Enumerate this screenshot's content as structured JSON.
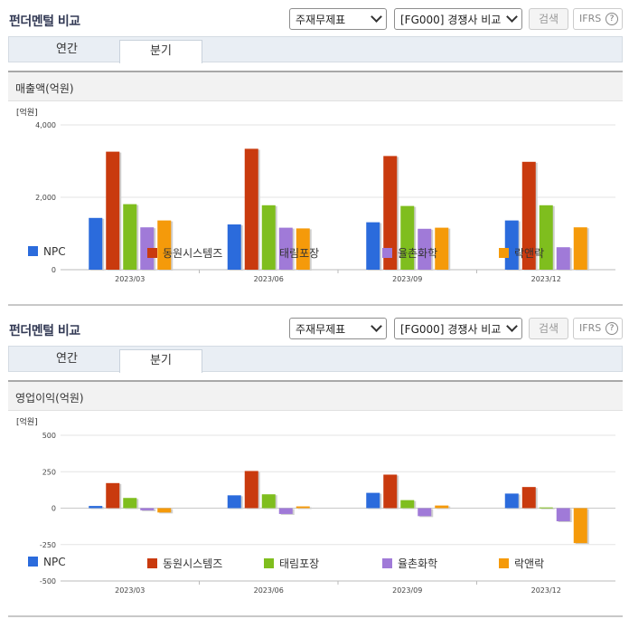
{
  "sections": [
    {
      "title": "펀더멘털 비교",
      "select1": "주재무제표",
      "select2": "[FG000] 경쟁사 비교",
      "search_label": "검색",
      "ifrs_label": "IFRS",
      "help_glyph": "?",
      "tabs": [
        "연간",
        "분기"
      ],
      "active_tab": 1,
      "panel_title": "매출액(억원)"
    },
    {
      "title": "펀더멘털 비교",
      "select1": "주재무제표",
      "select2": "[FG000] 경쟁사 비교",
      "search_label": "검색",
      "ifrs_label": "IFRS",
      "help_glyph": "?",
      "tabs": [
        "연간",
        "분기"
      ],
      "active_tab": 1,
      "panel_title": "영업이익(억원)"
    }
  ],
  "colors": {
    "NPC": "#2b6bdc",
    "동원시스템즈": "#c93a0e",
    "태림포장": "#7fbe1e",
    "율촌화학": "#a07ad8",
    "락앤락": "#f59a0a"
  },
  "chart_data": [
    {
      "type": "bar",
      "title": "매출액(억원)",
      "unit": "[억원]",
      "categories": [
        "2023/03",
        "2023/06",
        "2023/09",
        "2023/12"
      ],
      "ylim": [
        0,
        4000
      ],
      "yticks": [
        0,
        2000,
        4000
      ],
      "ytick_labels": [
        "0",
        "2,000",
        "4,000"
      ],
      "grid": true,
      "legend": "bottom",
      "series": [
        {
          "name": "NPC",
          "values": [
            1430,
            1250,
            1310,
            1360
          ]
        },
        {
          "name": "동원시스템즈",
          "values": [
            3260,
            3340,
            3140,
            2980
          ]
        },
        {
          "name": "태림포장",
          "values": [
            1810,
            1780,
            1760,
            1780
          ]
        },
        {
          "name": "율촌화학",
          "values": [
            1170,
            1160,
            1130,
            620
          ]
        },
        {
          "name": "락앤락",
          "values": [
            1360,
            1140,
            1160,
            1170
          ]
        }
      ]
    },
    {
      "type": "bar",
      "title": "영업이익(억원)",
      "unit": "[억원]",
      "categories": [
        "2023/03",
        "2023/06",
        "2023/09",
        "2023/12"
      ],
      "ylim": [
        -500,
        500
      ],
      "yticks": [
        -500,
        -250,
        0,
        250,
        500
      ],
      "ytick_labels": [
        "-500",
        "-250",
        "0",
        "250",
        "500"
      ],
      "grid": true,
      "legend": "bottom",
      "series": [
        {
          "name": "NPC",
          "values": [
            15,
            88,
            105,
            100
          ]
        },
        {
          "name": "동원시스템즈",
          "values": [
            172,
            255,
            230,
            145
          ]
        },
        {
          "name": "태림포장",
          "values": [
            70,
            95,
            55,
            5
          ]
        },
        {
          "name": "율촌화학",
          "values": [
            -15,
            -40,
            -55,
            -90
          ]
        },
        {
          "name": "락앤락",
          "values": [
            -30,
            12,
            18,
            -240
          ]
        }
      ]
    }
  ]
}
